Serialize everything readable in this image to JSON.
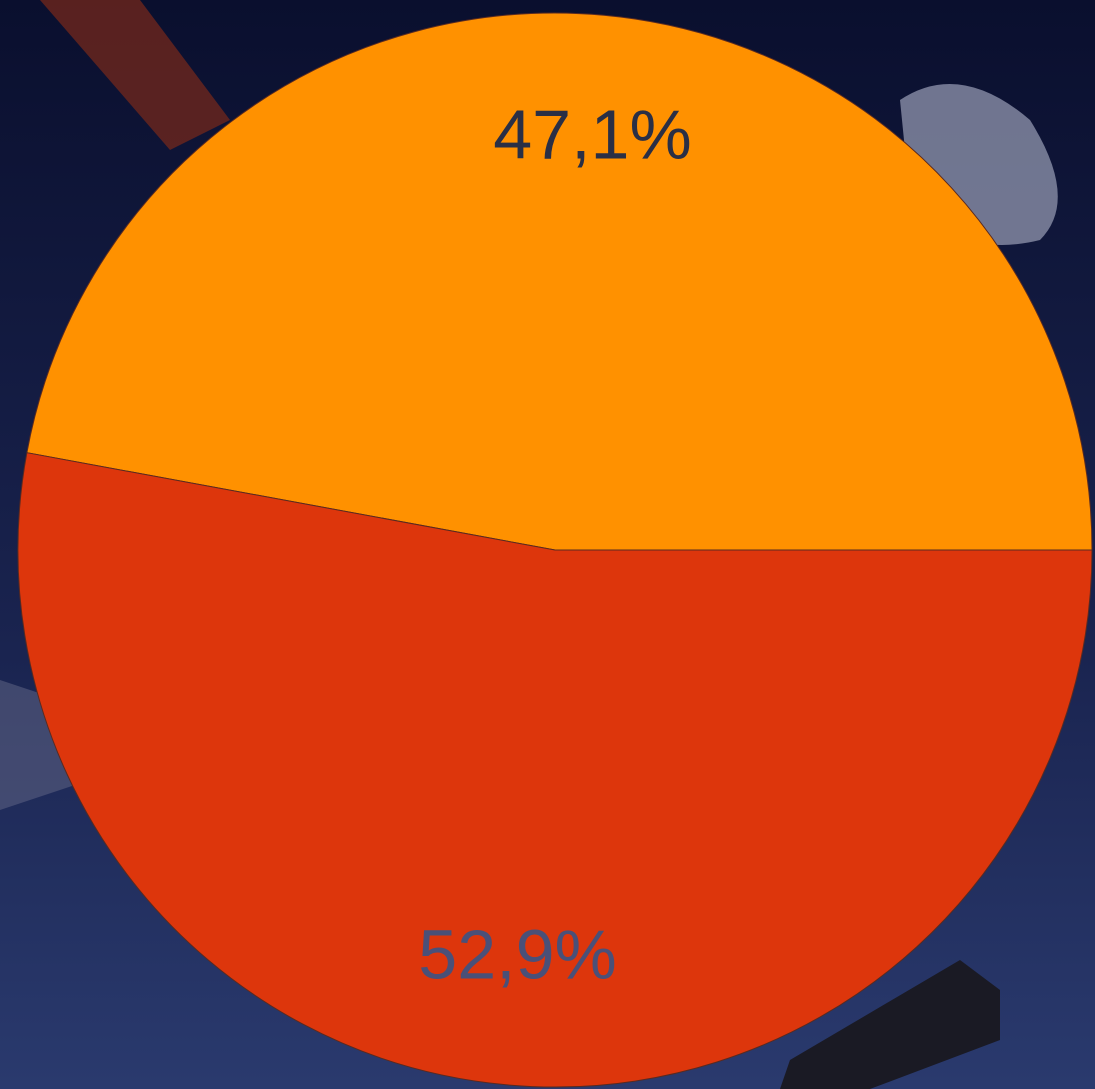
{
  "chart_data": {
    "type": "pie",
    "categories": [
      null,
      null
    ],
    "values": [
      47.1,
      52.9
    ],
    "value_labels": [
      "47,1%",
      "52,9%"
    ],
    "colors": [
      "#ff9100",
      "#dd360c"
    ],
    "label_colors": [
      "#2a2f45",
      "#4a5078"
    ]
  }
}
